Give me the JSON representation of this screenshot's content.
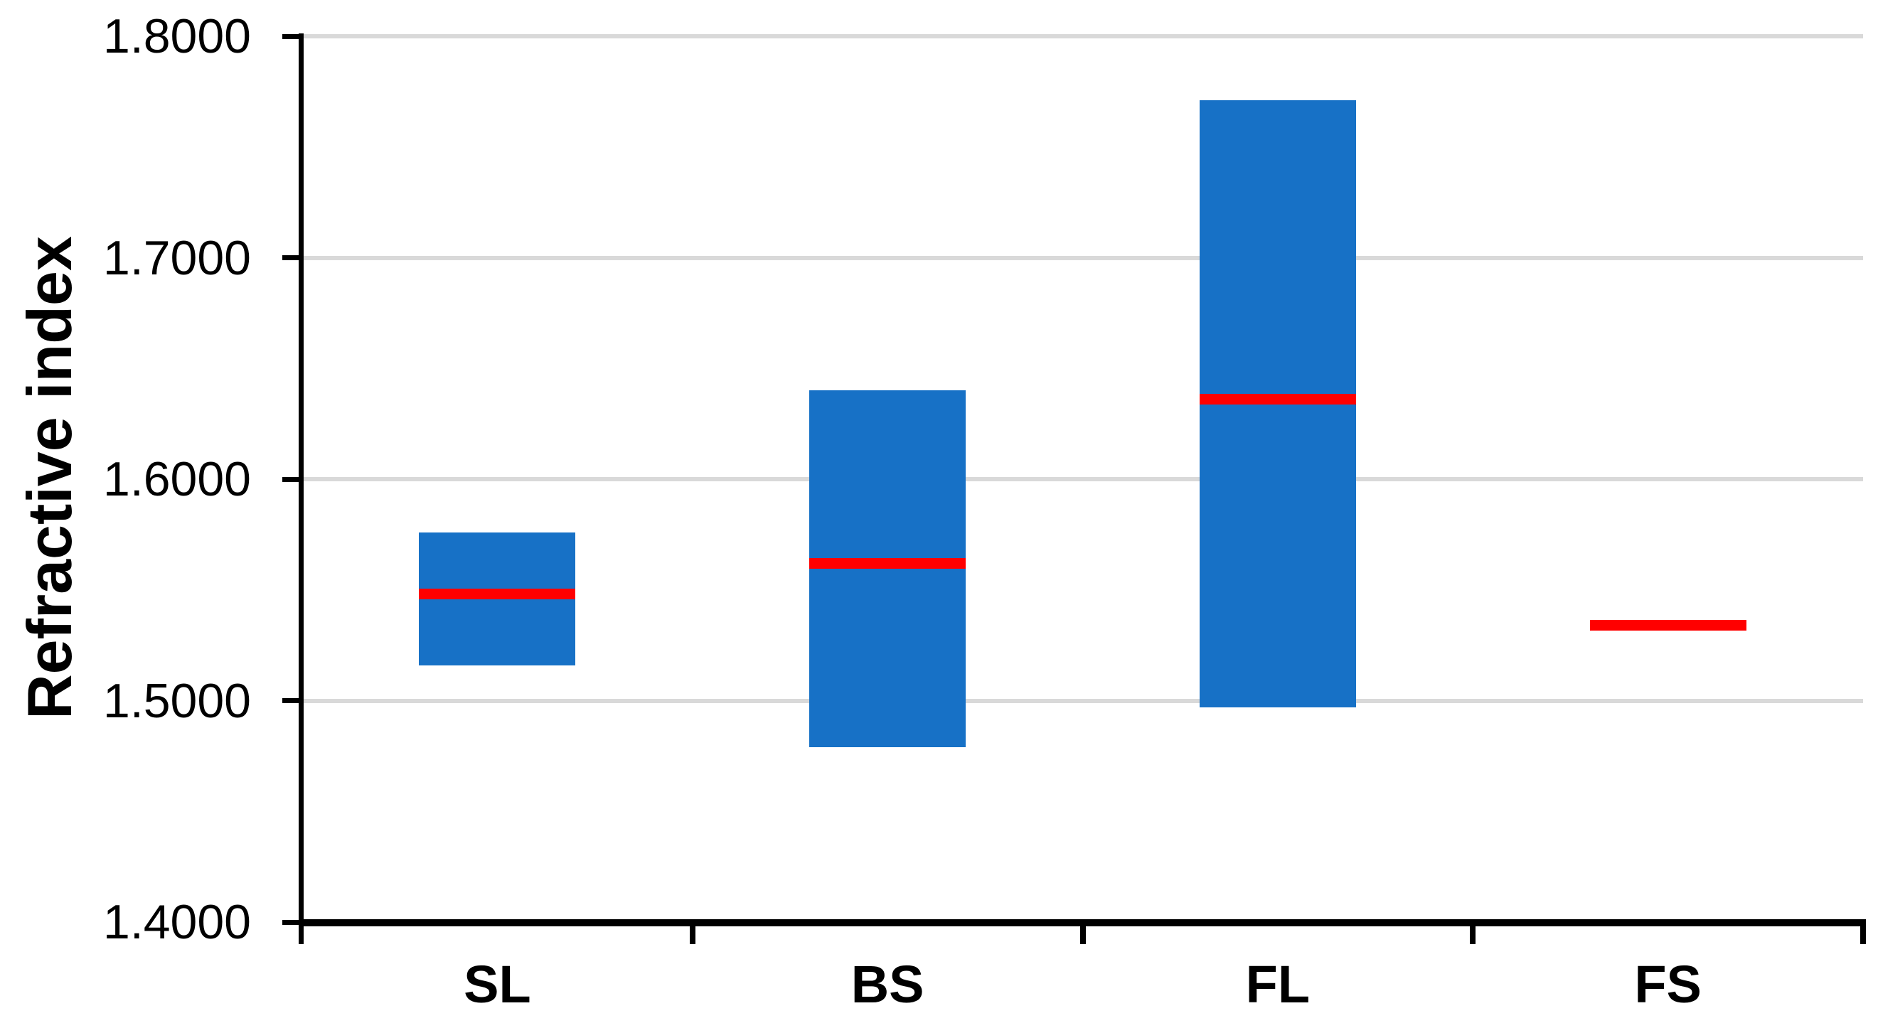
{
  "chart_data": {
    "type": "bar",
    "subtype": "floating-range-bars-with-marker-line",
    "title": "",
    "ylabel": "Refractive index",
    "xlabel": "",
    "categories": [
      "SL",
      "BS",
      "FL",
      "FS"
    ],
    "series": [
      {
        "name": "range_min",
        "values": [
          1.516,
          1.479,
          1.497,
          1.533
        ]
      },
      {
        "name": "range_max",
        "values": [
          1.576,
          1.64,
          1.771,
          1.534
        ]
      },
      {
        "name": "marker_line_red",
        "values": [
          1.548,
          1.562,
          1.636,
          1.534
        ]
      }
    ],
    "ylim": [
      1.4,
      1.8
    ],
    "yticks": [
      "1.8000",
      "1.7000",
      "1.6000",
      "1.5000",
      "1.4000"
    ],
    "grid": true,
    "legend": false,
    "colors": {
      "bar": "#1771C6",
      "marker_line": "#FF0000",
      "gridline": "#D9D9D9",
      "axis": "#000000",
      "text": "#000000"
    }
  }
}
